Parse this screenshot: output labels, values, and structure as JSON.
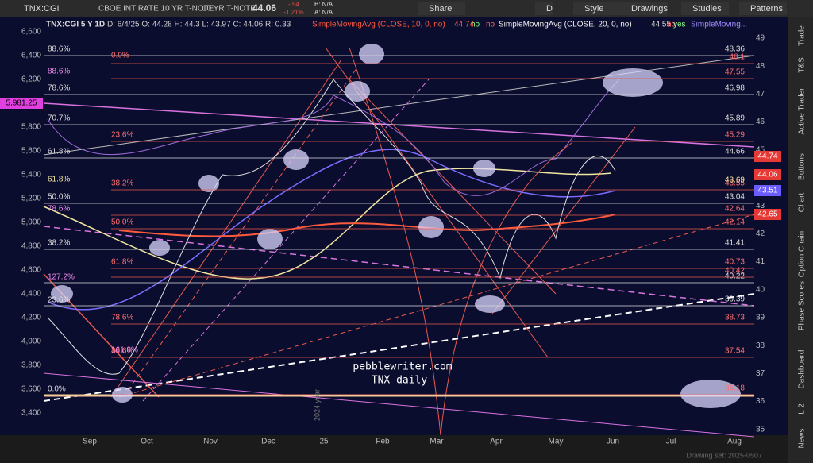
{
  "toolbar": {
    "symbol": "TNX:CGI",
    "description": "CBOE INT RATE 10 YR T-NOTE",
    "short_name": "10 YR T-NOTE",
    "last": "44.06",
    "change": "-.54",
    "change_pct": "-1.21%",
    "bid": "B: N/A",
    "ask": "A: N/A",
    "buttons": [
      "Share",
      "D",
      "Style",
      "Drawings",
      "Studies",
      "Patterns"
    ]
  },
  "header": {
    "symbol": "TNX:CGI 5 Y 1D",
    "ohlc": "D: 6/4/25  O: 44.28  H: 44.3  L: 43.97  C: 44.06  R: 0.33",
    "study1": "SimpleMovingAvg (CLOSE, 10, 0, no)",
    "study1_value": "44.74",
    "study1_flags": [
      "no",
      "no"
    ],
    "study2": "SimpleMovingAvg (CLOSE, 20, 0, no)",
    "study2_value": "44.55",
    "study2_flags": [
      "no",
      "yes"
    ],
    "study3": "SimpleMoving..."
  },
  "left_axis": [
    "6,600",
    "6,400",
    "6,200",
    "6,000",
    "5,800",
    "5,600",
    "5,400",
    "5,200",
    "5,000",
    "4,800",
    "4,600",
    "4,400",
    "4,200",
    "4,000",
    "3,800",
    "3,600",
    "3,400"
  ],
  "left_tag": "5,981.25",
  "right_axis": [
    "49",
    "48",
    "47",
    "46",
    "45",
    "44",
    "43",
    "42",
    "41",
    "40",
    "39",
    "38",
    "37",
    "36",
    "35"
  ],
  "right_tags": [
    "44.74",
    "44.06",
    "43.51",
    "42.65"
  ],
  "white_levels": [
    "48.36",
    "46.98",
    "45.89",
    "44.66",
    "43.04",
    "41.41",
    "40.22",
    "39.39"
  ],
  "red_levels": [
    "48.1",
    "47.55",
    "45.29",
    "43.55",
    "43.69",
    "42.64",
    "42.14",
    "40.73",
    "40.42",
    "38.73",
    "37.54",
    "36.18"
  ],
  "white_fibs": [
    "88.6%",
    "78.6%",
    "70.7%",
    "61.8%",
    "50.0%",
    "38.2%",
    "23.6%",
    "0.0%"
  ],
  "yellow_fibs": [
    "61.8%"
  ],
  "red_fibs": [
    "0.0%",
    "23.6%",
    "38.2%",
    "50.0%",
    "61.8%",
    "78.6%",
    "88.6%"
  ],
  "pink_fibs": [
    "88.6%",
    "78.6%",
    "127.2%",
    "161.8%"
  ],
  "x_axis": [
    "Sep",
    "Oct",
    "Nov",
    "Dec",
    "25",
    "Feb",
    "Mar",
    "Apr",
    "May",
    "Jun",
    "Jul",
    "Aug"
  ],
  "watermark": [
    "pebblewriter.com",
    "TNX daily"
  ],
  "year_marker": "2024 year",
  "footer": "Drawing set: 2025-0507",
  "sidebar": [
    "Trade",
    "T&S",
    "Active Trader",
    "Buttons",
    "Chart",
    "Option Chain",
    "Phase Scores",
    "Dashboard",
    "L 2",
    "News"
  ]
}
